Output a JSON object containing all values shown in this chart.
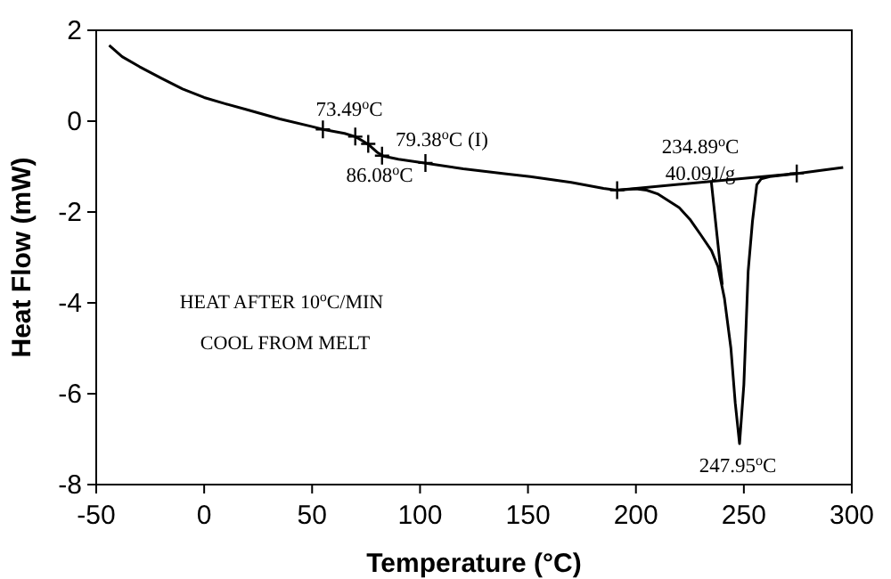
{
  "chart_data": {
    "type": "line",
    "xlabel": "Temperature (°C)",
    "ylabel": "Heat Flow (mW)",
    "xlim": [
      -50,
      300
    ],
    "ylim": [
      -8,
      2
    ],
    "xticks": [
      -50,
      0,
      50,
      100,
      150,
      200,
      250,
      300
    ],
    "yticks": [
      -8,
      -6,
      -4,
      -2,
      0,
      2
    ],
    "grid": false,
    "series": [
      {
        "color": "#000000",
        "marker": "none",
        "x": [
          -44,
          -38,
          -30,
          -20,
          -10,
          0,
          10,
          20,
          35,
          50,
          55,
          65,
          70,
          74,
          77,
          80,
          83,
          90,
          102,
          120,
          140,
          151,
          170,
          185,
          191,
          200,
          205,
          210,
          220,
          225,
          230,
          235,
          238,
          241,
          244,
          246,
          248,
          250,
          252,
          254,
          256,
          258,
          262,
          275,
          285,
          296
        ],
        "values": [
          1.67,
          1.42,
          1.2,
          0.95,
          0.71,
          0.52,
          0.38,
          0.25,
          0.05,
          -0.12,
          -0.18,
          -0.27,
          -0.34,
          -0.45,
          -0.55,
          -0.68,
          -0.77,
          -0.84,
          -0.92,
          -1.05,
          -1.16,
          -1.22,
          -1.35,
          -1.48,
          -1.52,
          -1.49,
          -1.52,
          -1.6,
          -1.9,
          -2.16,
          -2.5,
          -2.85,
          -3.2,
          -3.9,
          -5.0,
          -6.2,
          -7.1,
          -5.8,
          -3.3,
          -2.2,
          -1.4,
          -1.27,
          -1.22,
          -1.15,
          -1.09,
          -1.02
        ]
      },
      {
        "color": "#000000",
        "marker": "none",
        "x": [
          191.3,
          274.5
        ],
        "values": [
          -1.52,
          -1.15
        ]
      },
      {
        "color": "#000000",
        "marker": "none",
        "x": [
          234.89,
          240
        ],
        "values": [
          -1.32,
          -3.6
        ]
      },
      {
        "type": "scatter",
        "color": "#000000",
        "marker": "cross",
        "x": [
          55,
          70,
          76,
          82.4,
          102.5,
          191.3,
          274.5
        ],
        "values": [
          -0.18,
          -0.34,
          -0.5,
          -0.76,
          -0.92,
          -1.52,
          -1.15
        ]
      }
    ],
    "annotations": [
      "73.49$^{o}$C",
      "79.38$^{o}$C (I)",
      "86.08$^{o}$C",
      "234.89$^{o}$C",
      "40.09J/g",
      "247.95$^{o}$C",
      "HEAT AFTER 10$^{o}$C/MIN",
      "COOL FROM MELT"
    ]
  }
}
